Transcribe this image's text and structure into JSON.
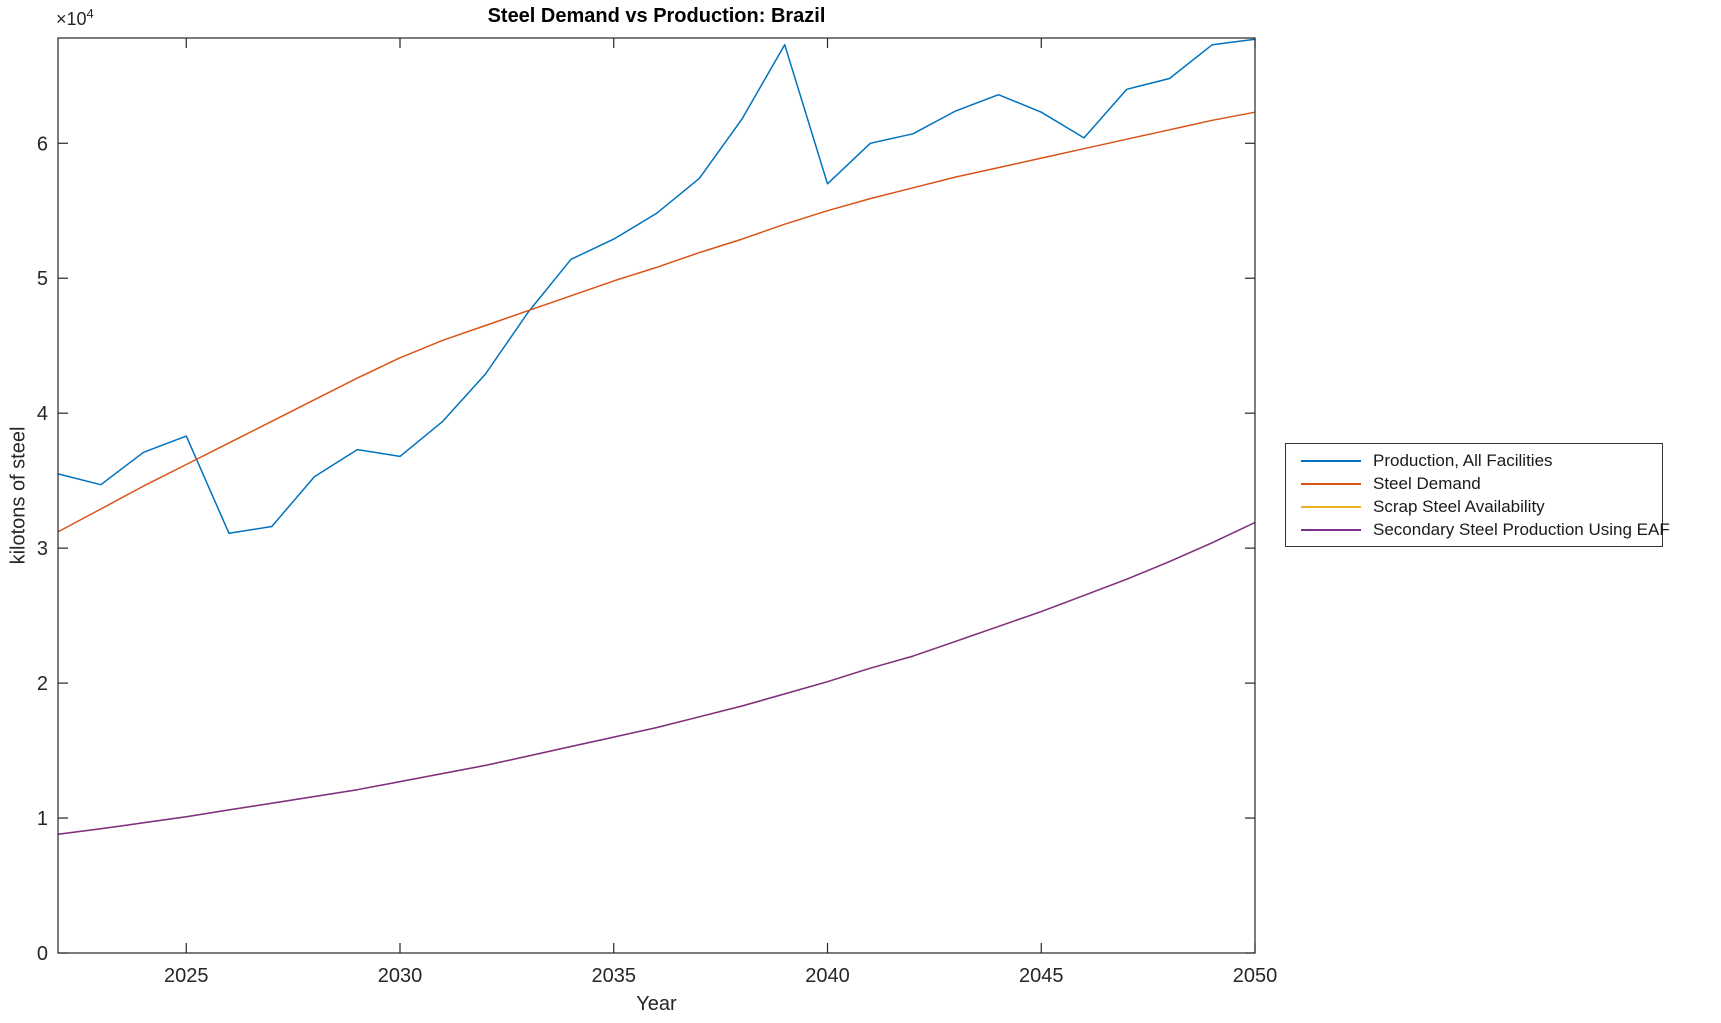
{
  "chart_data": {
    "type": "line",
    "title": "Steel Demand vs Production: Brazil",
    "xlabel": "Year",
    "ylabel": "kilotons of steel",
    "y_axis_offset_label": "×10",
    "y_axis_offset_exponent": "4",
    "grid": false,
    "legend_position": "right-outside",
    "xlim": [
      2022,
      2050
    ],
    "ylim": [
      0,
      67800
    ],
    "x_ticks": [
      2025,
      2030,
      2035,
      2040,
      2045,
      2050
    ],
    "y_ticks": [
      0,
      1,
      2,
      3,
      4,
      5,
      6
    ],
    "y_tick_scale": 10000,
    "axis_color": "#262626",
    "x": [
      2022,
      2023,
      2024,
      2025,
      2026,
      2027,
      2028,
      2029,
      2030,
      2031,
      2032,
      2033,
      2034,
      2035,
      2036,
      2037,
      2038,
      2039,
      2040,
      2041,
      2042,
      2043,
      2044,
      2045,
      2046,
      2047,
      2048,
      2049,
      2050
    ],
    "series": [
      {
        "name": "Production, All Facilities",
        "color": "#0072BD",
        "values": [
          35500,
          34700,
          37100,
          38300,
          31100,
          31600,
          35300,
          37300,
          36800,
          39400,
          42900,
          47500,
          51400,
          52900,
          54800,
          57400,
          61800,
          67300,
          57000,
          60000,
          60700,
          62400,
          63600,
          62300,
          60400,
          64000,
          64800,
          67300,
          67700
        ]
      },
      {
        "name": "Steel Demand",
        "color": "#D95319",
        "values": [
          31200,
          32900,
          34600,
          36200,
          37800,
          39400,
          41000,
          42600,
          44100,
          45400,
          46500,
          47600,
          48700,
          49800,
          50800,
          51900,
          52900,
          54000,
          55000,
          55900,
          56700,
          57500,
          58200,
          58900,
          59600,
          60300,
          61000,
          61700,
          62300
        ]
      },
      {
        "name": "Scrap Steel Availability",
        "color": "#EDB120",
        "values": [
          8800,
          9200,
          9650,
          10100,
          10600,
          11100,
          11600,
          12100,
          12700,
          13300,
          13900,
          14600,
          15300,
          16000,
          16700,
          17500,
          18300,
          19200,
          20100,
          21100,
          22000,
          23100,
          24200,
          25300,
          26500,
          27700,
          29000,
          30400,
          31900
        ]
      },
      {
        "name": "Secondary Steel Production Using EAF",
        "color": "#7E2F8E",
        "values": [
          8800,
          9200,
          9650,
          10100,
          10600,
          11100,
          11600,
          12100,
          12700,
          13300,
          13900,
          14600,
          15300,
          16000,
          16700,
          17500,
          18300,
          19200,
          20100,
          21100,
          22000,
          23100,
          24200,
          25300,
          26500,
          27700,
          29000,
          30400,
          31900
        ]
      }
    ]
  }
}
